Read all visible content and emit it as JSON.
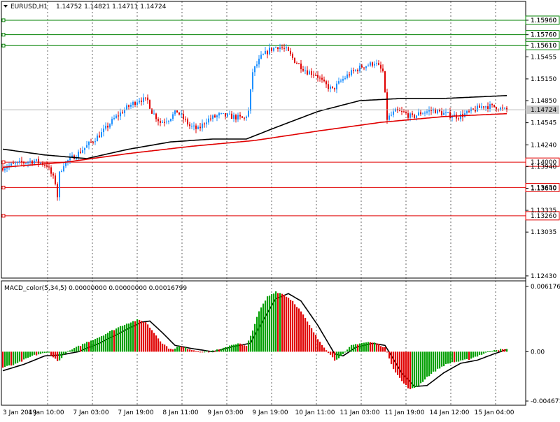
{
  "header": {
    "symbol_text": "EURUSD,H1",
    "ohlc_text": "1.14752 1.14821 1.14711 1.14724"
  },
  "macd": {
    "label_text": "MACD_color(5,34,5) 0.00000000 0.00000000 0.00016799",
    "ylim": [
      -0.004671,
      0.006176
    ],
    "ticks": [
      {
        "v": 0.006176,
        "label": "0.006176"
      },
      {
        "v": 0.0,
        "label": "0.00"
      },
      {
        "v": -0.004671,
        "label": "-0.004671"
      }
    ]
  },
  "x_labels": [
    "3 Jan 2019",
    "4 Jan 10:00",
    "7 Jan 03:00",
    "7 Jan 19:00",
    "8 Jan 11:00",
    "9 Jan 03:00",
    "9 Jan 19:00",
    "10 Jan 11:00",
    "11 Jan 03:00",
    "11 Jan 19:00",
    "14 Jan 12:00",
    "15 Jan 04:00"
  ],
  "colors": {
    "up_candle": "#1e90ff",
    "down_candle": "#e00000",
    "ma_fast": "#000000",
    "ma_slow": "#e00000",
    "resistance": "#008000",
    "support": "#e00000",
    "macd_up": "#00a000",
    "macd_down": "#e00000",
    "price_tag_bg": "#c8c8c8"
  },
  "chart_data": {
    "type": "candlestick",
    "ylim": [
      1.124,
      1.1622
    ],
    "y_ticks": [
      "1.15960",
      "1.15760",
      "1.15610",
      "1.15455",
      "1.15150",
      "1.14850",
      "1.14545",
      "1.14240",
      "1.13940",
      "1.13640",
      "1.13335",
      "1.13035",
      "1.12430"
    ],
    "last_price": "1.14724",
    "resistance_levels": [
      {
        "value": 1.1596,
        "label": "1.15960"
      },
      {
        "value": 1.1576,
        "label": "1.15760"
      },
      {
        "value": 1.1561,
        "label": "1.15610"
      }
    ],
    "support_levels": [
      {
        "value": 1.14,
        "label": "1.14000"
      },
      {
        "value": 1.1365,
        "label": "1.13650"
      },
      {
        "value": 1.1326,
        "label": "1.13260"
      }
    ],
    "price_anchors": [
      [
        0,
        1.1392
      ],
      [
        8,
        1.1398
      ],
      [
        16,
        1.1402
      ],
      [
        22,
        1.1396
      ],
      [
        26,
        1.1372
      ],
      [
        27,
        1.1353
      ],
      [
        28,
        1.1384
      ],
      [
        30,
        1.1398
      ],
      [
        36,
        1.141
      ],
      [
        42,
        1.1425
      ],
      [
        48,
        1.144
      ],
      [
        54,
        1.146
      ],
      [
        60,
        1.1475
      ],
      [
        66,
        1.1487
      ],
      [
        70,
        1.1485
      ],
      [
        72,
        1.147
      ],
      [
        76,
        1.1455
      ],
      [
        80,
        1.146
      ],
      [
        84,
        1.147
      ],
      [
        90,
        1.145
      ],
      [
        94,
        1.1445
      ],
      [
        98,
        1.1458
      ],
      [
        104,
        1.1465
      ],
      [
        110,
        1.1463
      ],
      [
        116,
        1.146
      ],
      [
        118,
        1.147
      ],
      [
        120,
        1.1525
      ],
      [
        124,
        1.1545
      ],
      [
        128,
        1.1555
      ],
      [
        132,
        1.156
      ],
      [
        136,
        1.1555
      ],
      [
        140,
        1.154
      ],
      [
        146,
        1.1525
      ],
      [
        150,
        1.1522
      ],
      [
        154,
        1.1508
      ],
      [
        158,
        1.15
      ],
      [
        162,
        1.1512
      ],
      [
        166,
        1.1522
      ],
      [
        172,
        1.1532
      ],
      [
        176,
        1.1535
      ],
      [
        178,
        1.1538
      ],
      [
        182,
        1.1525
      ],
      [
        184,
        1.146
      ],
      [
        188,
        1.147
      ],
      [
        192,
        1.1468
      ],
      [
        196,
        1.1462
      ],
      [
        200,
        1.1468
      ],
      [
        206,
        1.1472
      ],
      [
        212,
        1.1466
      ],
      [
        218,
        1.1463
      ],
      [
        224,
        1.147
      ],
      [
        230,
        1.1478
      ],
      [
        236,
        1.1476
      ],
      [
        240,
        1.1472
      ]
    ],
    "ma_fast_anchors": [
      [
        0,
        1.1418
      ],
      [
        20,
        1.141
      ],
      [
        40,
        1.1405
      ],
      [
        60,
        1.1418
      ],
      [
        80,
        1.1428
      ],
      [
        100,
        1.1432
      ],
      [
        110,
        1.1432
      ],
      [
        116,
        1.1432
      ],
      [
        130,
        1.1448
      ],
      [
        150,
        1.147
      ],
      [
        170,
        1.1485
      ],
      [
        190,
        1.1488
      ],
      [
        210,
        1.1488
      ],
      [
        240,
        1.1492
      ]
    ],
    "ma_slow_anchors": [
      [
        0,
        1.1393
      ],
      [
        30,
        1.14
      ],
      [
        60,
        1.1412
      ],
      [
        90,
        1.1422
      ],
      [
        120,
        1.143
      ],
      [
        150,
        1.1443
      ],
      [
        180,
        1.1455
      ],
      [
        210,
        1.1463
      ],
      [
        240,
        1.1467
      ]
    ],
    "macd_anchors": [
      [
        0,
        -0.0015
      ],
      [
        6,
        -0.0012
      ],
      [
        10,
        -0.0008
      ],
      [
        14,
        -0.0004
      ],
      [
        18,
        -0.0002
      ],
      [
        22,
        -0.0001
      ],
      [
        26,
        -0.0009
      ],
      [
        28,
        -0.0006
      ],
      [
        30,
        -0.0001
      ],
      [
        34,
        0.0003
      ],
      [
        40,
        0.0009
      ],
      [
        46,
        0.0014
      ],
      [
        52,
        0.002
      ],
      [
        58,
        0.0026
      ],
      [
        64,
        0.003
      ],
      [
        68,
        0.0028
      ],
      [
        72,
        0.0018
      ],
      [
        76,
        0.0008
      ],
      [
        80,
        0.0002
      ],
      [
        84,
        0.0005
      ],
      [
        88,
        0.0003
      ],
      [
        92,
        0.0001
      ],
      [
        96,
        0.0
      ],
      [
        100,
        0.0001
      ],
      [
        104,
        0.0002
      ],
      [
        108,
        0.0006
      ],
      [
        112,
        0.0008
      ],
      [
        116,
        0.0005
      ],
      [
        118,
        0.0015
      ],
      [
        122,
        0.0038
      ],
      [
        126,
        0.0052
      ],
      [
        130,
        0.0057
      ],
      [
        134,
        0.0054
      ],
      [
        138,
        0.0048
      ],
      [
        142,
        0.0038
      ],
      [
        146,
        0.0025
      ],
      [
        150,
        0.0012
      ],
      [
        154,
        0.0002
      ],
      [
        158,
        -0.0008
      ],
      [
        162,
        -0.0003
      ],
      [
        166,
        0.0006
      ],
      [
        170,
        0.0008
      ],
      [
        174,
        0.0009
      ],
      [
        178,
        0.0008
      ],
      [
        182,
        0.0004
      ],
      [
        186,
        -0.0016
      ],
      [
        190,
        -0.0028
      ],
      [
        194,
        -0.0036
      ],
      [
        198,
        -0.0032
      ],
      [
        202,
        -0.0024
      ],
      [
        206,
        -0.0018
      ],
      [
        210,
        -0.0013
      ],
      [
        214,
        -0.001
      ],
      [
        218,
        -0.0009
      ],
      [
        222,
        -0.0007
      ],
      [
        226,
        -0.0004
      ],
      [
        230,
        -0.0001
      ],
      [
        234,
        0.0002
      ],
      [
        238,
        0.0002
      ],
      [
        240,
        0.0002
      ]
    ],
    "macd_signal_anchors": [
      [
        0,
        -0.0018
      ],
      [
        10,
        -0.0012
      ],
      [
        20,
        -0.0004
      ],
      [
        28,
        -0.0003
      ],
      [
        36,
        0.0
      ],
      [
        46,
        0.0008
      ],
      [
        56,
        0.0018
      ],
      [
        66,
        0.0028
      ],
      [
        70,
        0.0029
      ],
      [
        76,
        0.0018
      ],
      [
        82,
        0.0006
      ],
      [
        90,
        0.0003
      ],
      [
        100,
        0.0
      ],
      [
        110,
        0.0005
      ],
      [
        118,
        0.0008
      ],
      [
        124,
        0.003
      ],
      [
        130,
        0.005
      ],
      [
        136,
        0.0055
      ],
      [
        142,
        0.0048
      ],
      [
        150,
        0.0025
      ],
      [
        158,
        -0.0002
      ],
      [
        162,
        -0.0004
      ],
      [
        168,
        0.0004
      ],
      [
        176,
        0.0008
      ],
      [
        182,
        0.0006
      ],
      [
        190,
        -0.002
      ],
      [
        196,
        -0.0033
      ],
      [
        202,
        -0.0032
      ],
      [
        210,
        -0.002
      ],
      [
        218,
        -0.0011
      ],
      [
        226,
        -0.0008
      ],
      [
        234,
        -0.0002
      ],
      [
        240,
        0.0002
      ]
    ]
  }
}
